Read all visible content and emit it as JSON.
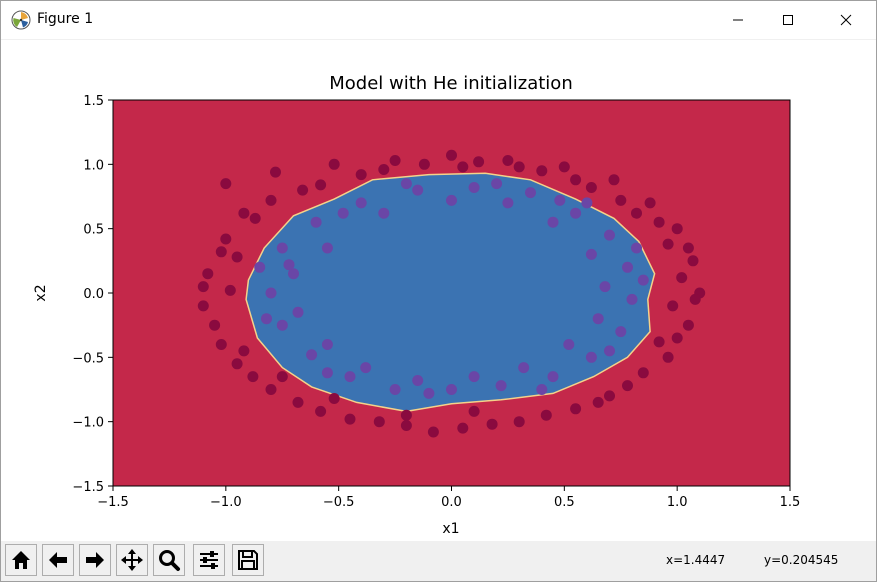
{
  "window": {
    "title": "Figure 1"
  },
  "toolbar": {
    "buttons": [
      {
        "name": "home-icon"
      },
      {
        "name": "back-arrow-icon"
      },
      {
        "name": "forward-arrow-icon"
      },
      {
        "name": "pan-icon"
      },
      {
        "name": "zoom-icon"
      },
      {
        "name": "subplots-config-icon"
      },
      {
        "name": "save-icon"
      }
    ],
    "x_readout": "x=1.4447",
    "y_readout": "y=0.204545"
  },
  "colors": {
    "outer_region": "#c4284a",
    "inner_region": "#3b73b2",
    "boundary": "#f4d28a",
    "point_outer": "#8a0a3f",
    "point_inner": "#6a46a6"
  },
  "chart_data": {
    "type": "scatter",
    "title": "Model with He initialization",
    "xlabel": "x1",
    "ylabel": "x2",
    "xlim": [
      -1.5,
      1.5
    ],
    "ylim": [
      -1.5,
      1.5
    ],
    "xticks": [
      -1.5,
      -1.0,
      -0.5,
      0.0,
      0.5,
      1.0,
      1.5
    ],
    "yticks": [
      -1.5,
      -1.0,
      -0.5,
      0.0,
      0.5,
      1.0,
      1.5
    ],
    "xtick_labels": [
      "−1.5",
      "−1.0",
      "−0.5",
      "0.0",
      "0.5",
      "1.0",
      "1.5"
    ],
    "ytick_labels": [
      "−1.5",
      "−1.0",
      "−0.5",
      "0.0",
      "0.5",
      "1.0",
      "1.5"
    ],
    "grid": false,
    "decision_boundary": [
      [
        -0.9,
        0.1
      ],
      [
        -0.83,
        0.35
      ],
      [
        -0.7,
        0.6
      ],
      [
        -0.52,
        0.73
      ],
      [
        -0.35,
        0.88
      ],
      [
        -0.1,
        0.92
      ],
      [
        0.15,
        0.93
      ],
      [
        0.35,
        0.88
      ],
      [
        0.55,
        0.73
      ],
      [
        0.72,
        0.58
      ],
      [
        0.83,
        0.4
      ],
      [
        0.9,
        0.15
      ],
      [
        0.87,
        -0.05
      ],
      [
        0.88,
        -0.3
      ],
      [
        0.78,
        -0.5
      ],
      [
        0.63,
        -0.65
      ],
      [
        0.45,
        -0.78
      ],
      [
        0.22,
        -0.83
      ],
      [
        0.0,
        -0.86
      ],
      [
        -0.2,
        -0.92
      ],
      [
        -0.42,
        -0.85
      ],
      [
        -0.62,
        -0.73
      ],
      [
        -0.75,
        -0.58
      ],
      [
        -0.86,
        -0.35
      ],
      [
        -0.91,
        -0.05
      ]
    ],
    "series": [
      {
        "label_class": 0,
        "points": [
          [
            -1.0,
            0.85
          ],
          [
            -0.78,
            0.94
          ],
          [
            -0.52,
            1.0
          ],
          [
            -0.25,
            1.03
          ],
          [
            0.0,
            1.07
          ],
          [
            0.25,
            1.03
          ],
          [
            0.5,
            0.98
          ],
          [
            0.72,
            0.88
          ],
          [
            0.88,
            0.7
          ],
          [
            1.0,
            0.5
          ],
          [
            1.07,
            0.25
          ],
          [
            1.1,
            0.0
          ],
          [
            1.05,
            -0.25
          ],
          [
            0.96,
            -0.5
          ],
          [
            0.78,
            -0.72
          ],
          [
            0.55,
            -0.9
          ],
          [
            0.3,
            -1.0
          ],
          [
            0.05,
            -1.05
          ],
          [
            -0.2,
            -1.03
          ],
          [
            -0.45,
            -0.98
          ],
          [
            -0.68,
            -0.85
          ],
          [
            -0.88,
            -0.65
          ],
          [
            -1.02,
            -0.4
          ],
          [
            -1.1,
            -0.1
          ],
          [
            -1.08,
            0.15
          ],
          [
            -1.0,
            0.42
          ],
          [
            -0.92,
            0.62
          ],
          [
            -0.66,
            0.8
          ],
          [
            -0.4,
            0.92
          ],
          [
            -0.12,
            1.0
          ],
          [
            0.12,
            1.02
          ],
          [
            0.4,
            0.95
          ],
          [
            0.62,
            0.82
          ],
          [
            0.82,
            0.62
          ],
          [
            0.96,
            0.38
          ],
          [
            1.02,
            0.12
          ],
          [
            0.98,
            -0.1
          ],
          [
            0.92,
            -0.38
          ],
          [
            0.7,
            -0.8
          ],
          [
            0.42,
            -0.95
          ],
          [
            0.18,
            -1.02
          ],
          [
            -0.08,
            -1.08
          ],
          [
            -0.32,
            -1.0
          ],
          [
            -0.58,
            -0.92
          ],
          [
            -0.8,
            -0.75
          ],
          [
            -0.95,
            -0.55
          ],
          [
            -1.05,
            -0.25
          ],
          [
            -0.98,
            0.02
          ],
          [
            -0.95,
            0.28
          ],
          [
            -0.8,
            0.72
          ],
          [
            -0.58,
            0.84
          ],
          [
            -0.3,
            0.96
          ],
          [
            0.05,
            0.98
          ],
          [
            0.3,
            0.98
          ],
          [
            0.55,
            0.88
          ],
          [
            0.75,
            0.72
          ],
          [
            0.92,
            0.55
          ],
          [
            1.05,
            0.35
          ],
          [
            1.08,
            -0.05
          ],
          [
            1.0,
            -0.35
          ],
          [
            0.85,
            -0.62
          ],
          [
            0.65,
            -0.85
          ],
          [
            0.1,
            -0.92
          ],
          [
            -0.2,
            -0.95
          ],
          [
            -0.52,
            -0.82
          ],
          [
            -0.75,
            -0.65
          ],
          [
            -0.92,
            -0.45
          ],
          [
            -1.1,
            0.05
          ],
          [
            -1.02,
            0.32
          ],
          [
            -0.87,
            0.58
          ]
        ]
      },
      {
        "label_class": 1,
        "points": [
          [
            -0.75,
            0.35
          ],
          [
            -0.6,
            0.55
          ],
          [
            -0.4,
            0.7
          ],
          [
            -0.15,
            0.8
          ],
          [
            0.1,
            0.82
          ],
          [
            0.35,
            0.78
          ],
          [
            0.55,
            0.62
          ],
          [
            0.7,
            0.45
          ],
          [
            0.78,
            0.2
          ],
          [
            0.8,
            -0.05
          ],
          [
            0.75,
            -0.3
          ],
          [
            0.62,
            -0.5
          ],
          [
            0.45,
            -0.65
          ],
          [
            0.22,
            -0.72
          ],
          [
            0.0,
            -0.75
          ],
          [
            -0.25,
            -0.75
          ],
          [
            -0.45,
            -0.65
          ],
          [
            -0.62,
            -0.48
          ],
          [
            -0.75,
            -0.25
          ],
          [
            -0.8,
            0.0
          ],
          [
            -0.7,
            0.15
          ],
          [
            -0.55,
            0.35
          ],
          [
            -0.3,
            0.62
          ],
          [
            0.0,
            0.72
          ],
          [
            0.25,
            0.7
          ],
          [
            0.45,
            0.55
          ],
          [
            0.62,
            0.3
          ],
          [
            0.68,
            0.05
          ],
          [
            0.65,
            -0.2
          ],
          [
            0.52,
            -0.4
          ],
          [
            0.32,
            -0.58
          ],
          [
            0.1,
            -0.65
          ],
          [
            -0.15,
            -0.68
          ],
          [
            -0.38,
            -0.58
          ],
          [
            -0.55,
            -0.4
          ],
          [
            -0.68,
            -0.15
          ],
          [
            -0.72,
            0.22
          ],
          [
            -0.48,
            0.62
          ],
          [
            0.2,
            0.85
          ],
          [
            0.6,
            0.7
          ],
          [
            0.82,
            0.35
          ],
          [
            0.85,
            0.1
          ],
          [
            0.7,
            -0.45
          ],
          [
            0.4,
            -0.75
          ],
          [
            -0.1,
            -0.78
          ],
          [
            -0.55,
            -0.62
          ],
          [
            -0.82,
            -0.2
          ],
          [
            -0.85,
            0.2
          ],
          [
            0.48,
            0.72
          ],
          [
            -0.2,
            0.85
          ]
        ]
      }
    ]
  }
}
